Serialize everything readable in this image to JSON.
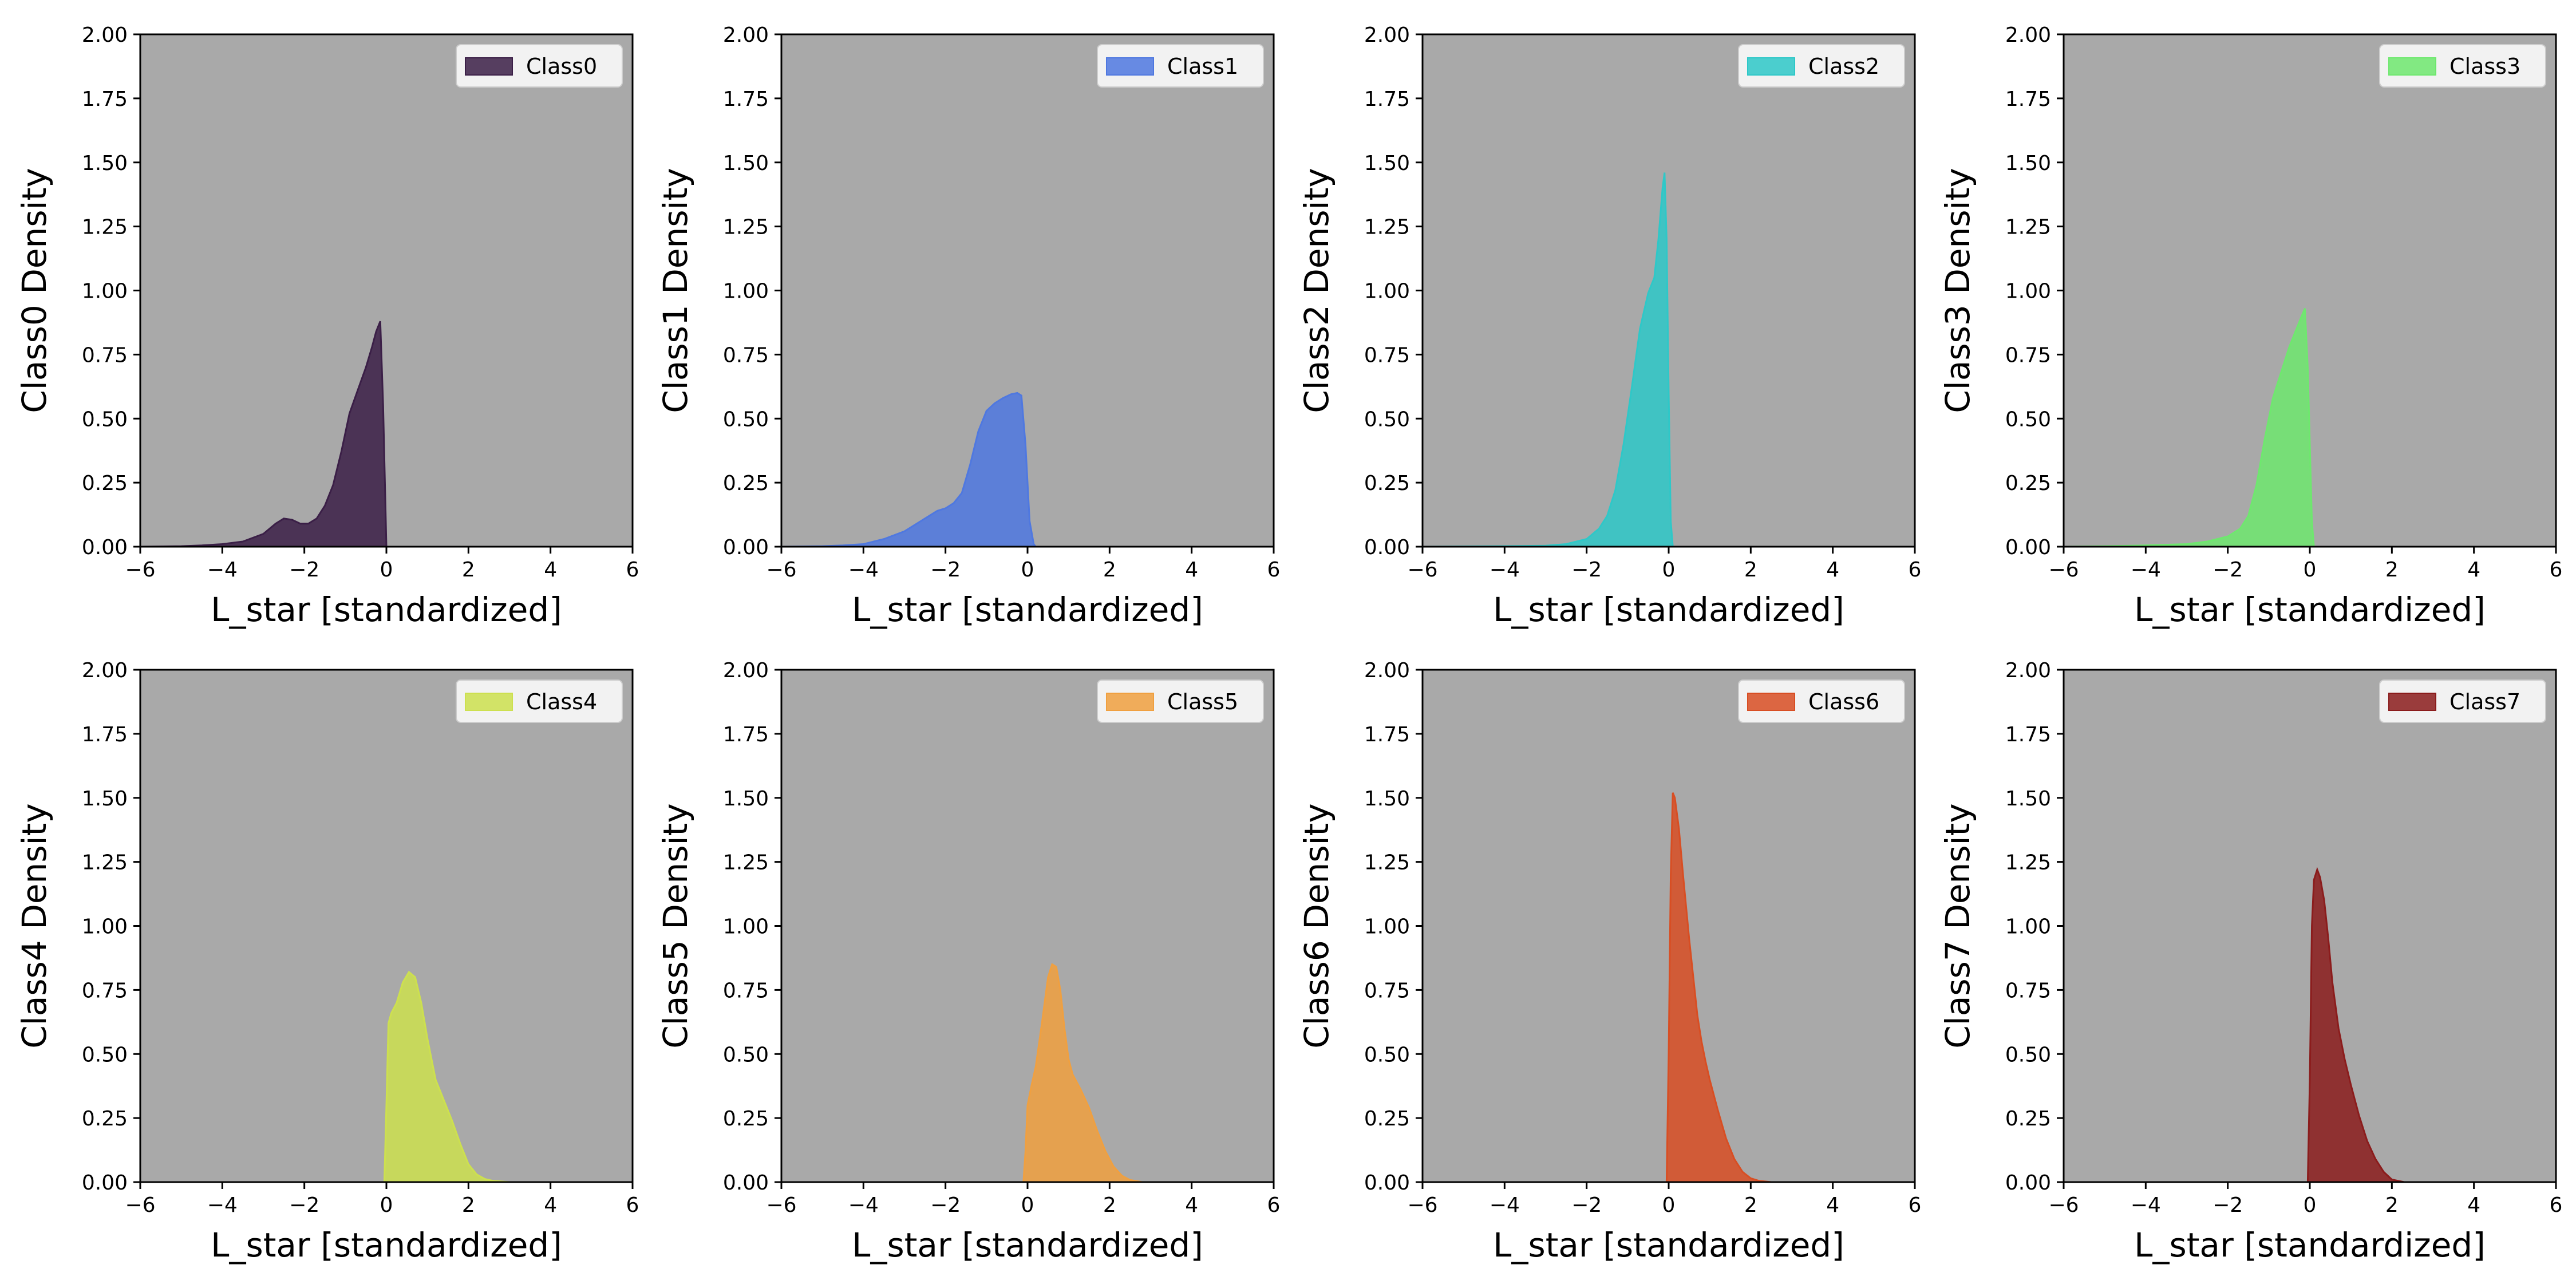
{
  "chart_data": [
    {
      "type": "area",
      "series": [
        {
          "name": "Class0",
          "color": "#3b1f47",
          "x": [
            -6,
            -5,
            -4.5,
            -4,
            -3.5,
            -3,
            -2.7,
            -2.5,
            -2.3,
            -2.1,
            -1.9,
            -1.7,
            -1.5,
            -1.3,
            -1.1,
            -0.9,
            -0.7,
            -0.5,
            -0.35,
            -0.25,
            -0.15,
            -0.08,
            0
          ],
          "y": [
            0,
            0.002,
            0.005,
            0.01,
            0.02,
            0.05,
            0.09,
            0.11,
            0.105,
            0.09,
            0.09,
            0.11,
            0.16,
            0.24,
            0.37,
            0.52,
            0.61,
            0.7,
            0.78,
            0.84,
            0.88,
            0.55,
            0
          ]
        }
      ],
      "xlabel": "L_star [standardized]",
      "ylabel": "Class0 Density",
      "xlim": [
        -6,
        6
      ],
      "ylim": [
        0,
        2
      ],
      "xticks": [
        -6,
        -4,
        -2,
        0,
        2,
        4,
        6
      ],
      "yticks": [
        0,
        0.25,
        0.5,
        0.75,
        1,
        1.25,
        1.5,
        1.75,
        2
      ],
      "legend": "top-right"
    },
    {
      "type": "area",
      "series": [
        {
          "name": "Class1",
          "color": "#4f78e0",
          "x": [
            -6,
            -5,
            -4.5,
            -4,
            -3.5,
            -3,
            -2.5,
            -2.2,
            -2,
            -1.8,
            -1.6,
            -1.4,
            -1.2,
            -1,
            -0.8,
            -0.6,
            -0.4,
            -0.25,
            -0.15,
            -0.05,
            0.05,
            0.15,
            0.2
          ],
          "y": [
            0,
            0.002,
            0.005,
            0.01,
            0.03,
            0.06,
            0.11,
            0.14,
            0.15,
            0.17,
            0.21,
            0.32,
            0.45,
            0.53,
            0.56,
            0.58,
            0.595,
            0.6,
            0.59,
            0.4,
            0.1,
            0.01,
            0
          ]
        }
      ],
      "xlabel": "L_star [standardized]",
      "ylabel": "Class1 Density",
      "xlim": [
        -6,
        6
      ],
      "ylim": [
        0,
        2
      ],
      "xticks": [
        -6,
        -4,
        -2,
        0,
        2,
        4,
        6
      ],
      "yticks": [
        0,
        0.25,
        0.5,
        0.75,
        1,
        1.25,
        1.5,
        1.75,
        2
      ],
      "legend": "top-right"
    },
    {
      "type": "area",
      "series": [
        {
          "name": "Class2",
          "color": "#2ec8c8",
          "x": [
            -6,
            -4,
            -3,
            -2.5,
            -2,
            -1.7,
            -1.5,
            -1.3,
            -1.1,
            -0.9,
            -0.7,
            -0.5,
            -0.35,
            -0.25,
            -0.15,
            -0.1,
            -0.05,
            0,
            0.05,
            0.1
          ],
          "y": [
            0,
            0.002,
            0.004,
            0.01,
            0.03,
            0.07,
            0.12,
            0.22,
            0.4,
            0.62,
            0.85,
            0.99,
            1.05,
            1.2,
            1.4,
            1.46,
            1.2,
            0.6,
            0.1,
            0
          ]
        }
      ],
      "xlabel": "L_star [standardized]",
      "ylabel": "Class2 Density",
      "xlim": [
        -6,
        6
      ],
      "ylim": [
        0,
        2
      ],
      "xticks": [
        -6,
        -4,
        -2,
        0,
        2,
        4,
        6
      ],
      "yticks": [
        0,
        0.25,
        0.5,
        0.75,
        1,
        1.25,
        1.5,
        1.75,
        2
      ],
      "legend": "top-right"
    },
    {
      "type": "area",
      "series": [
        {
          "name": "Class3",
          "color": "#6ee86e",
          "x": [
            -6,
            -5,
            -4,
            -3,
            -2.5,
            -2,
            -1.7,
            -1.5,
            -1.3,
            -1.1,
            -0.9,
            -0.7,
            -0.5,
            -0.35,
            -0.2,
            -0.12,
            -0.05,
            0.05,
            0.1
          ],
          "y": [
            0,
            0.002,
            0.005,
            0.01,
            0.02,
            0.04,
            0.07,
            0.12,
            0.24,
            0.42,
            0.58,
            0.68,
            0.78,
            0.84,
            0.9,
            0.93,
            0.7,
            0.1,
            0
          ]
        }
      ],
      "xlabel": "L_star [standardized]",
      "ylabel": "Class3 Density",
      "xlim": [
        -6,
        6
      ],
      "ylim": [
        0,
        2
      ],
      "xticks": [
        -6,
        -4,
        -2,
        0,
        2,
        4,
        6
      ],
      "yticks": [
        0,
        0.25,
        0.5,
        0.75,
        1,
        1.25,
        1.5,
        1.75,
        2
      ],
      "legend": "top-right"
    },
    {
      "type": "area",
      "series": [
        {
          "name": "Class4",
          "color": "#cde04f",
          "x": [
            -0.05,
            0,
            0.05,
            0.12,
            0.25,
            0.4,
            0.55,
            0.7,
            0.85,
            1,
            1.2,
            1.4,
            1.6,
            1.8,
            2,
            2.2,
            2.4,
            2.6,
            3
          ],
          "y": [
            0,
            0.3,
            0.62,
            0.66,
            0.7,
            0.78,
            0.82,
            0.8,
            0.7,
            0.56,
            0.4,
            0.32,
            0.24,
            0.15,
            0.07,
            0.03,
            0.012,
            0.005,
            0
          ]
        }
      ],
      "xlabel": "L_star [standardized]",
      "ylabel": "Class4 Density",
      "xlim": [
        -6,
        6
      ],
      "ylim": [
        0,
        2
      ],
      "xticks": [
        -6,
        -4,
        -2,
        0,
        2,
        4,
        6
      ],
      "yticks": [
        0,
        0.25,
        0.5,
        0.75,
        1,
        1.25,
        1.5,
        1.75,
        2
      ],
      "legend": "top-right"
    },
    {
      "type": "area",
      "series": [
        {
          "name": "Class5",
          "color": "#f0a040",
          "x": [
            -0.1,
            -0.05,
            0,
            0.1,
            0.2,
            0.35,
            0.5,
            0.6,
            0.7,
            0.8,
            0.9,
            1,
            1.1,
            1.3,
            1.5,
            1.7,
            1.9,
            2.1,
            2.3,
            2.5,
            2.8
          ],
          "y": [
            0,
            0.12,
            0.3,
            0.38,
            0.45,
            0.62,
            0.8,
            0.85,
            0.84,
            0.75,
            0.6,
            0.48,
            0.42,
            0.36,
            0.29,
            0.2,
            0.12,
            0.06,
            0.025,
            0.008,
            0
          ]
        }
      ],
      "xlabel": "L_star [standardized]",
      "ylabel": "Class5 Density",
      "xlim": [
        -6,
        6
      ],
      "ylim": [
        0,
        2
      ],
      "xticks": [
        -6,
        -4,
        -2,
        0,
        2,
        4,
        6
      ],
      "yticks": [
        0,
        0.25,
        0.5,
        0.75,
        1,
        1.25,
        1.5,
        1.75,
        2
      ],
      "legend": "top-right"
    },
    {
      "type": "area",
      "series": [
        {
          "name": "Class6",
          "color": "#d84e23",
          "x": [
            -0.05,
            0,
            0.05,
            0.1,
            0.15,
            0.25,
            0.35,
            0.5,
            0.6,
            0.7,
            0.8,
            0.9,
            1,
            1.2,
            1.4,
            1.6,
            1.8,
            2,
            2.2,
            2.5
          ],
          "y": [
            0,
            0.5,
            1.2,
            1.52,
            1.5,
            1.38,
            1.2,
            0.95,
            0.8,
            0.65,
            0.55,
            0.47,
            0.4,
            0.28,
            0.17,
            0.09,
            0.04,
            0.015,
            0.005,
            0
          ]
        }
      ],
      "xlabel": "L_star [standardized]",
      "ylabel": "Class6 Density",
      "xlim": [
        -6,
        6
      ],
      "ylim": [
        0,
        2
      ],
      "xticks": [
        -6,
        -4,
        -2,
        0,
        2,
        4,
        6
      ],
      "yticks": [
        0,
        0.25,
        0.5,
        0.75,
        1,
        1.25,
        1.5,
        1.75,
        2
      ],
      "legend": "top-right"
    },
    {
      "type": "area",
      "series": [
        {
          "name": "Class7",
          "color": "#8b1c1c",
          "x": [
            -0.05,
            0,
            0.05,
            0.1,
            0.18,
            0.25,
            0.35,
            0.45,
            0.55,
            0.7,
            0.85,
            1,
            1.2,
            1.4,
            1.6,
            1.8,
            2,
            2.3
          ],
          "y": [
            0,
            0.4,
            1.0,
            1.18,
            1.22,
            1.19,
            1.1,
            0.95,
            0.78,
            0.6,
            0.48,
            0.38,
            0.26,
            0.16,
            0.09,
            0.04,
            0.01,
            0
          ]
        }
      ],
      "xlabel": "L_star [standardized]",
      "ylabel": "Class7 Density",
      "xlim": [
        -6,
        6
      ],
      "ylim": [
        0,
        2
      ],
      "xticks": [
        -6,
        -4,
        -2,
        0,
        2,
        4,
        6
      ],
      "yticks": [
        0,
        0.25,
        0.5,
        0.75,
        1,
        1.25,
        1.5,
        1.75,
        2
      ],
      "legend": "top-right"
    }
  ],
  "style": {
    "plot_background": "#a9a9a9",
    "figure_background": "#ffffff",
    "fill_opacity": 0.85
  }
}
